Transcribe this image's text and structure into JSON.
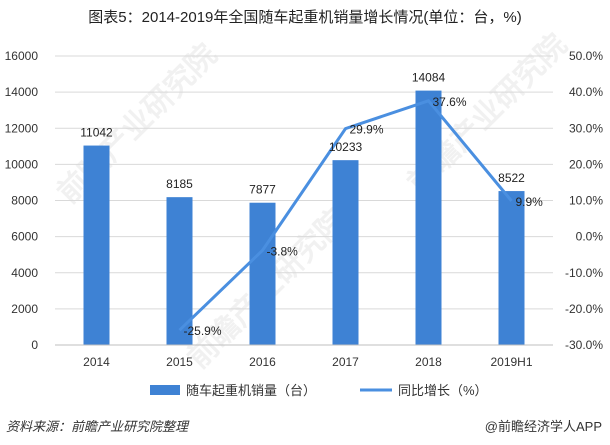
{
  "title": "图表5：2014-2019年全国随车起重机销量增长情况(单位：台，%)",
  "footer": {
    "source": "资料来源：前瞻产业研究院整理",
    "credit": "@前瞻经济学人APP"
  },
  "watermark": "前瞻产业研究院",
  "colors": {
    "bar": "#3e82d4",
    "line": "#4a8fe0",
    "grid": "#d9d9d9",
    "axis": "#bfbfbf"
  },
  "chart_data": {
    "type": "bar",
    "categories": [
      "2014",
      "2015",
      "2016",
      "2017",
      "2018",
      "2019H1"
    ],
    "series": [
      {
        "name": "随车起重机销量（台）",
        "type": "bar",
        "axis": "left",
        "values": [
          11042,
          8185,
          7877,
          10233,
          14084,
          8522
        ],
        "labels": [
          "11042",
          "8185",
          "7877",
          "10233",
          "14084",
          "8522"
        ]
      },
      {
        "name": "同比增长（%）",
        "type": "line",
        "axis": "right",
        "x": [
          "2015",
          "2016",
          "2017",
          "2018",
          "2019H1"
        ],
        "values": [
          -25.9,
          -3.8,
          29.9,
          37.6,
          9.9
        ],
        "labels": [
          "-25.9%",
          "-3.8%",
          "29.9%",
          "37.6%",
          "9.9%"
        ]
      }
    ],
    "y_left": {
      "min": 0,
      "max": 16000,
      "ticks": [
        "0",
        "2000",
        "4000",
        "6000",
        "8000",
        "10000",
        "12000",
        "14000",
        "16000"
      ]
    },
    "y_right": {
      "min": -30,
      "max": 50,
      "ticks": [
        "-30.0%",
        "-20.0%",
        "-10.0%",
        "0.0%",
        "10.0%",
        "20.0%",
        "30.0%",
        "40.0%",
        "50.0%"
      ]
    },
    "legend": [
      "随车起重机销量（台）",
      "同比增长（%）"
    ],
    "legend_position": "bottom",
    "grid": true
  }
}
